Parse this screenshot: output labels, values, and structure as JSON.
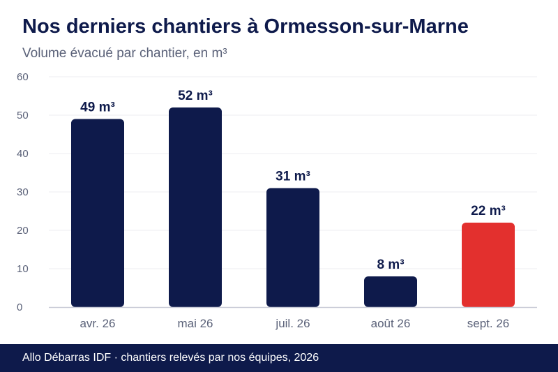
{
  "header": {
    "title": "Nos derniers chantiers à Ormesson-sur-Marne",
    "subtitle": "Volume évacué par chantier, en m³"
  },
  "footer": {
    "text": "Allo Débarras IDF · chantiers relevés par nos équipes, 2026"
  },
  "colors": {
    "bar_default": "#0e1a4b",
    "bar_highlight": "#e3302e",
    "title": "#0e1a4b",
    "subtitle": "#5a6178",
    "tick": "#5a6178",
    "grid": "#ecedf2",
    "axis": "#c9cbd6",
    "footer_bg": "#0e1a4b"
  },
  "chart_data": {
    "type": "bar",
    "categories": [
      "avr. 26",
      "mai 26",
      "juil. 26",
      "août 26",
      "sept. 26"
    ],
    "values": [
      49,
      52,
      31,
      8,
      22
    ],
    "data_labels": [
      "49 m³",
      "52 m³",
      "31 m³",
      "8 m³",
      "22 m³"
    ],
    "highlight_index": 4,
    "ylim": [
      0,
      60
    ],
    "yticks": [
      "0",
      "10",
      "20",
      "30",
      "40",
      "50",
      "60"
    ],
    "title": "Nos derniers chantiers à Ormesson-sur-Marne",
    "subtitle": "Volume évacué par chantier, en m³",
    "xlabel": "",
    "ylabel": "",
    "grid": true,
    "legend": "none"
  }
}
